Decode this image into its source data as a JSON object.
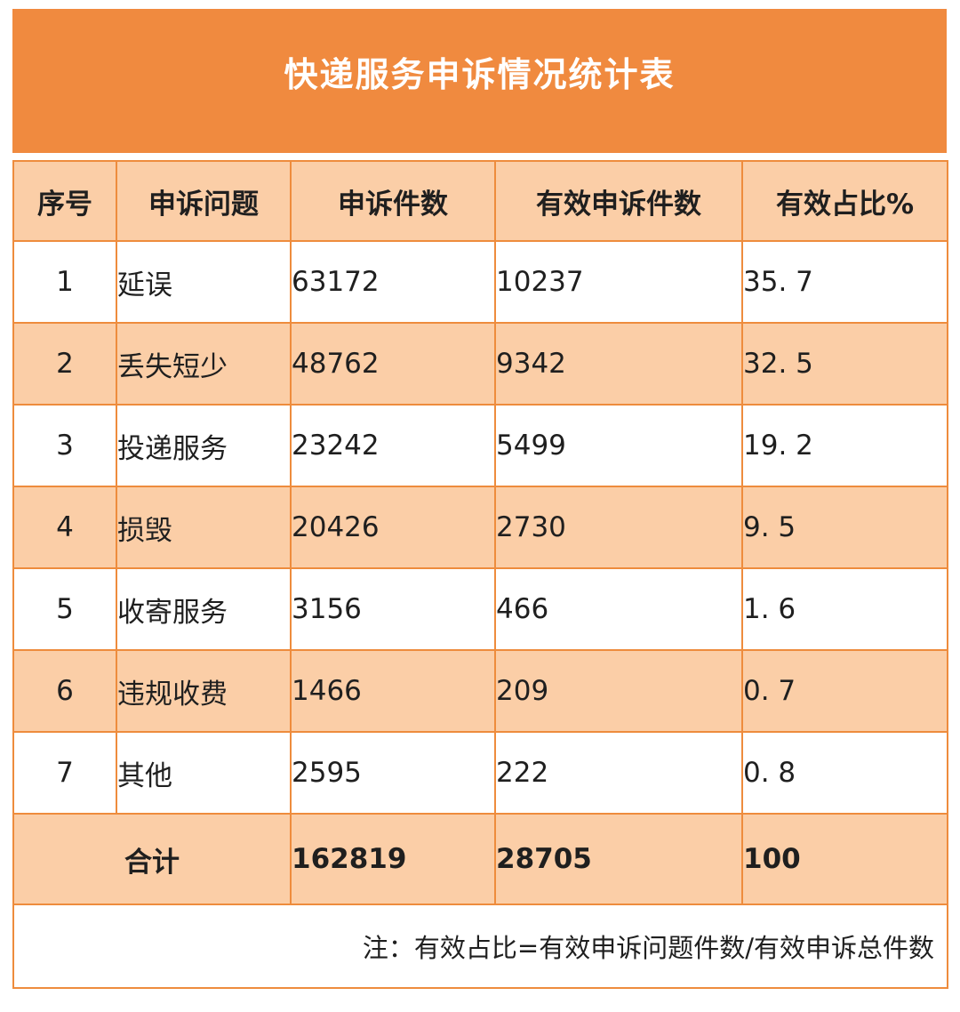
{
  "page": {
    "title": "快递服务申诉情况统计表"
  },
  "table": {
    "headers": [
      "序号",
      "申诉问题",
      "申诉件数",
      "有效申诉件数",
      "有效占比%"
    ],
    "rows": [
      {
        "no": "1",
        "issue": "延误",
        "count": "63172",
        "valid": "10237",
        "pct": "35. 7"
      },
      {
        "no": "2",
        "issue": "丢失短少",
        "count": "48762",
        "valid": "9342",
        "pct": "32. 5"
      },
      {
        "no": "3",
        "issue": "投递服务",
        "count": "23242",
        "valid": "5499",
        "pct": "19. 2"
      },
      {
        "no": "4",
        "issue": "损毁",
        "count": "20426",
        "valid": "2730",
        "pct": "9. 5"
      },
      {
        "no": "5",
        "issue": "收寄服务",
        "count": "3156",
        "valid": "466",
        "pct": "1. 6"
      },
      {
        "no": "6",
        "issue": "违规收费",
        "count": "1466",
        "valid": "209",
        "pct": "0. 7"
      },
      {
        "no": "7",
        "issue": "其他",
        "count": "2595",
        "valid": "222",
        "pct": "0. 8"
      }
    ],
    "total": {
      "label": "合计",
      "count": "162819",
      "valid": "28705",
      "pct": "100"
    },
    "note": "注：有效占比=有效申诉问题件数/有效申诉总件数"
  },
  "colors": {
    "banner_orange": "#F08A3F",
    "row_peach": "#FBCEA7",
    "border_orange": "#EE8C3D",
    "title_text": "#FFFFFF",
    "body_text": "#1F1F1F"
  },
  "chart_data": {
    "type": "table",
    "title": "快递服务申诉情况统计表",
    "columns": [
      "序号",
      "申诉问题",
      "申诉件数",
      "有效申诉件数",
      "有效占比%"
    ],
    "rows": [
      [
        1,
        "延误",
        63172,
        10237,
        35.7
      ],
      [
        2,
        "丢失短少",
        48762,
        9342,
        32.5
      ],
      [
        3,
        "投递服务",
        23242,
        5499,
        19.2
      ],
      [
        4,
        "损毁",
        20426,
        2730,
        9.5
      ],
      [
        5,
        "收寄服务",
        3156,
        466,
        1.6
      ],
      [
        6,
        "违规收费",
        1466,
        209,
        0.7
      ],
      [
        7,
        "其他",
        2595,
        222,
        0.8
      ]
    ],
    "total_row": [
      "合计",
      162819,
      28705,
      100
    ],
    "note": "注：有效占比=有效申诉问题件数/有效申诉总件数"
  }
}
